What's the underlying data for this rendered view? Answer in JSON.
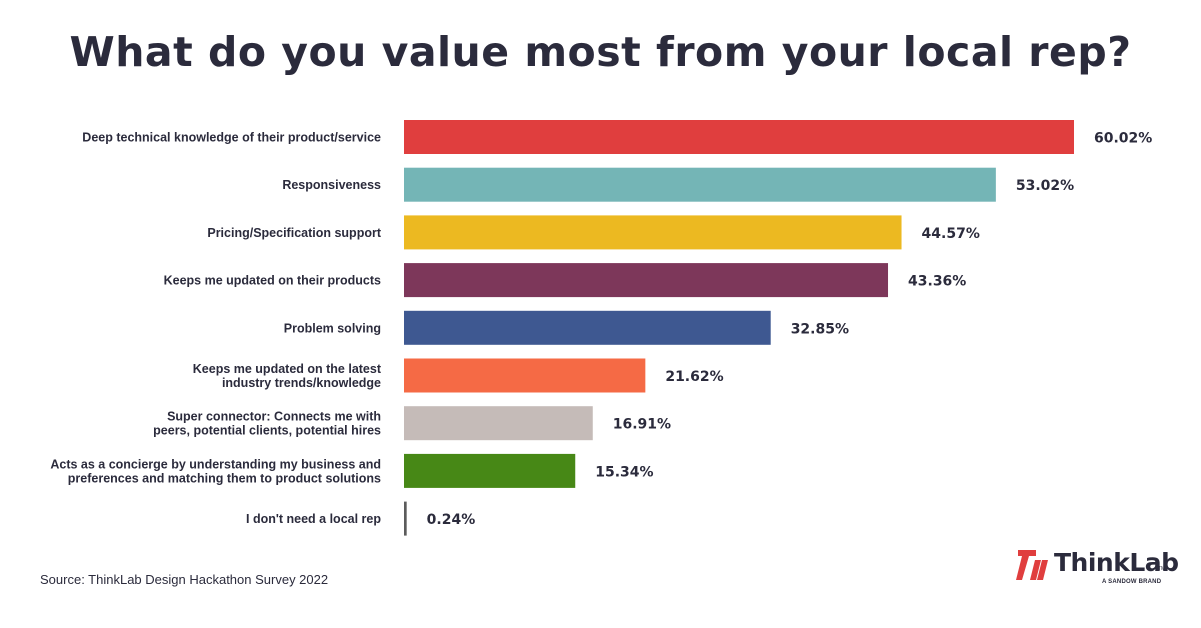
{
  "title": "What do you value most from your local rep?",
  "source": "Source: ThinkLab Design Hackathon Survey 2022",
  "logo": {
    "name": "ThinkLab",
    "tm": "TM",
    "tagline": "A SANDOW BRAND",
    "mark_color": "#e03e3e"
  },
  "chart_data": {
    "type": "bar",
    "orientation": "horizontal",
    "title": "What do you value most from your local rep?",
    "xlabel": "",
    "ylabel": "",
    "xlim": [
      0,
      60.02
    ],
    "grid": false,
    "legend": "none",
    "value_suffix": "%",
    "categories": [
      [
        "Deep technical knowledge of their product/service"
      ],
      [
        "Responsiveness"
      ],
      [
        "Pricing/Specification support"
      ],
      [
        "Keeps me updated on their products"
      ],
      [
        "Problem solving"
      ],
      [
        "Keeps me updated on the latest",
        "industry trends/knowledge"
      ],
      [
        "Super connector: Connects me with",
        "peers, potential clients, potential hires"
      ],
      [
        "Acts as a concierge by understanding my business and",
        "preferences and matching them to product solutions"
      ],
      [
        "I don't need a local rep"
      ]
    ],
    "values": [
      60.02,
      53.02,
      44.57,
      43.36,
      32.85,
      21.62,
      16.91,
      15.34,
      0.24
    ],
    "value_labels": [
      "60.02%",
      "53.02%",
      "44.57%",
      "43.36%",
      "32.85%",
      "21.62%",
      "16.91%",
      "15.34%",
      "0.24%"
    ],
    "colors": [
      "#e03e3e",
      "#74b5b6",
      "#ecb921",
      "#7d375a",
      "#3e5891",
      "#f56a45",
      "#c5bbb8",
      "#478816",
      "#5c5c5c"
    ]
  }
}
